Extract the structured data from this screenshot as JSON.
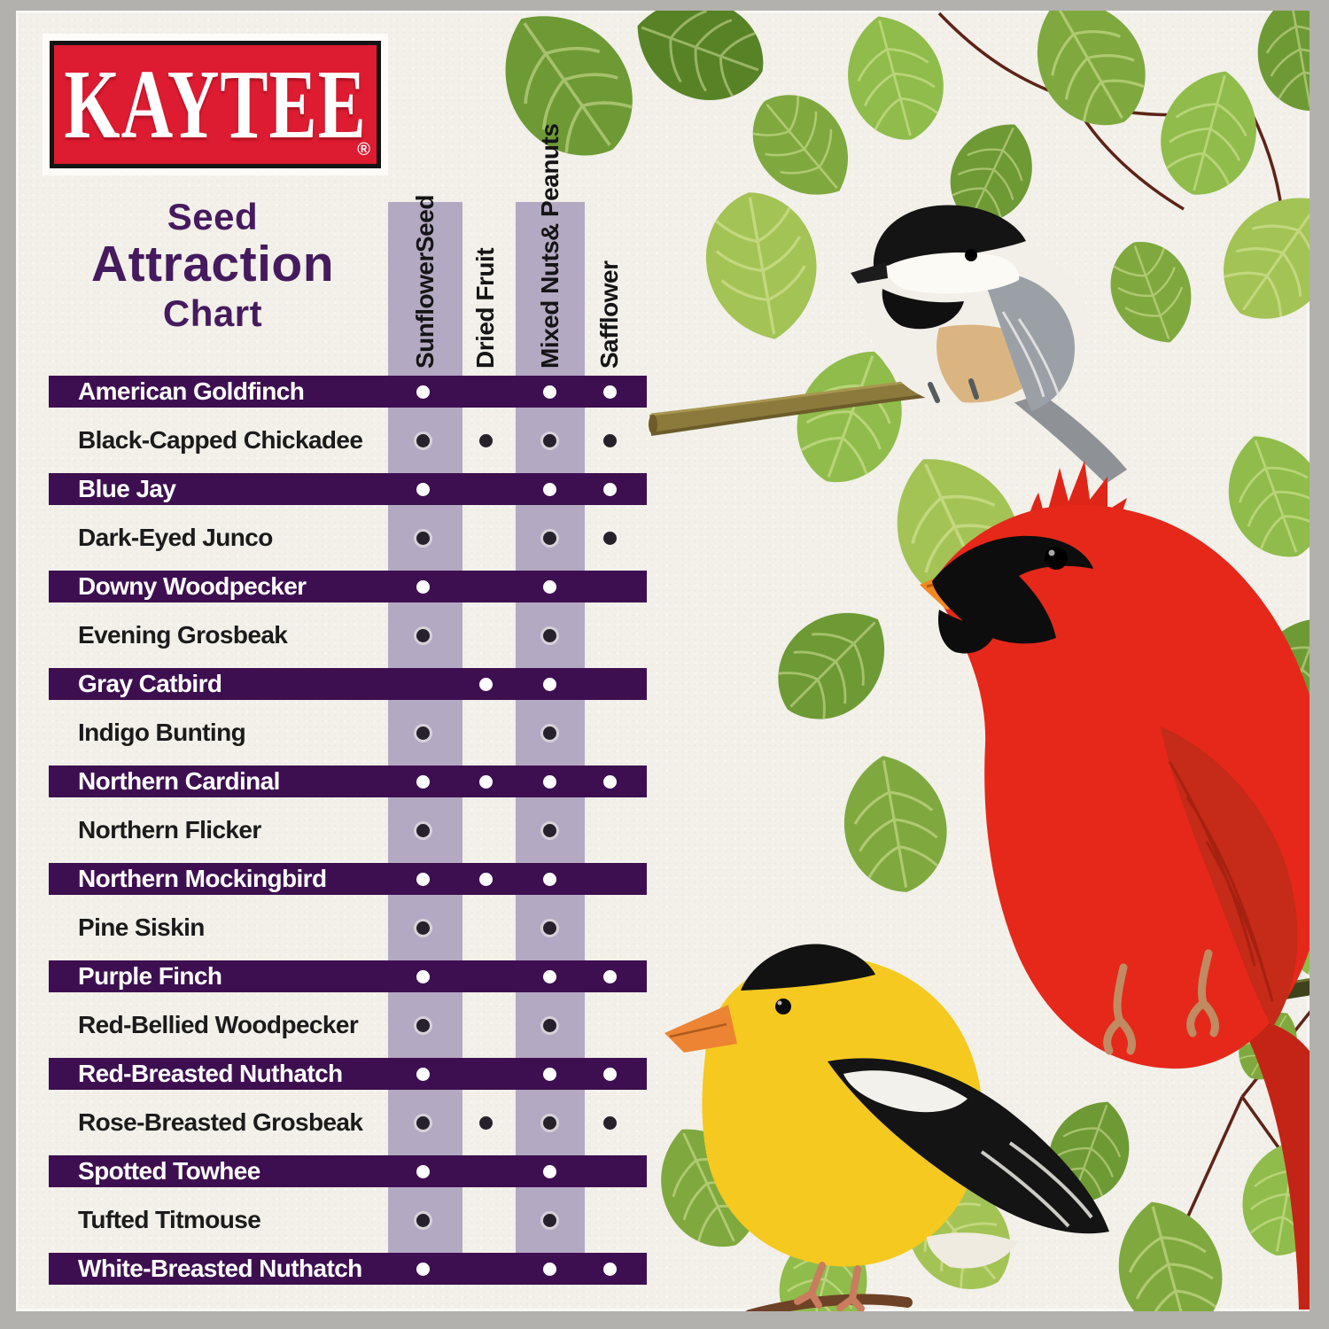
{
  "brand": {
    "logo_text": "KAYTEE",
    "registered_mark": "®",
    "logo_red": "#DD1B31"
  },
  "title": {
    "line1": "Seed",
    "line2": "Attraction",
    "line3": "Chart",
    "color": "#461A5E"
  },
  "columns_display": [
    {
      "line1": "Sunflower",
      "line2": "Seed"
    },
    {
      "line1": "Dried Fruit"
    },
    {
      "line1": "Mixed Nuts",
      "line2": "& Peanuts"
    },
    {
      "line1": "Safflower"
    }
  ],
  "colors": {
    "frame_gray": "#B3B1AD",
    "card_cream": "#F2F0E9",
    "row_dark_purple": "#3D0F50",
    "column_band_lavender": "#B4A9C2",
    "dot_on_dark_row": "#FFFFFF",
    "dot_on_light_row": "#26212A",
    "title_purple": "#461A5E"
  },
  "chart_data": {
    "type": "table",
    "title": "Kaytee Seed Attraction Chart",
    "columns": [
      "Sunflower Seed",
      "Dried Fruit",
      "Mixed Nuts & Peanuts",
      "Safflower"
    ],
    "rows": [
      {
        "bird": "American Goldfinch",
        "dots": [
          1,
          0,
          1,
          1
        ]
      },
      {
        "bird": "Black-Capped Chickadee",
        "dots": [
          1,
          1,
          1,
          1
        ]
      },
      {
        "bird": "Blue Jay",
        "dots": [
          1,
          0,
          1,
          1
        ]
      },
      {
        "bird": "Dark-Eyed Junco",
        "dots": [
          1,
          0,
          1,
          1
        ]
      },
      {
        "bird": "Downy Woodpecker",
        "dots": [
          1,
          0,
          1,
          0
        ]
      },
      {
        "bird": "Evening Grosbeak",
        "dots": [
          1,
          0,
          1,
          0
        ]
      },
      {
        "bird": "Gray Catbird",
        "dots": [
          0,
          1,
          1,
          0
        ]
      },
      {
        "bird": "Indigo Bunting",
        "dots": [
          1,
          0,
          1,
          0
        ]
      },
      {
        "bird": "Northern Cardinal",
        "dots": [
          1,
          1,
          1,
          1
        ]
      },
      {
        "bird": "Northern Flicker",
        "dots": [
          1,
          0,
          1,
          0
        ]
      },
      {
        "bird": "Northern Mockingbird",
        "dots": [
          1,
          1,
          1,
          0
        ]
      },
      {
        "bird": "Pine Siskin",
        "dots": [
          1,
          0,
          1,
          0
        ]
      },
      {
        "bird": "Purple Finch",
        "dots": [
          1,
          0,
          1,
          1
        ]
      },
      {
        "bird": "Red-Bellied Woodpecker",
        "dots": [
          1,
          0,
          1,
          0
        ]
      },
      {
        "bird": "Red-Breasted Nuthatch",
        "dots": [
          1,
          0,
          1,
          1
        ]
      },
      {
        "bird": "Rose-Breasted Grosbeak",
        "dots": [
          1,
          1,
          1,
          1
        ]
      },
      {
        "bird": "Spotted Towhee",
        "dots": [
          1,
          0,
          1,
          0
        ]
      },
      {
        "bird": "Tufted Titmouse",
        "dots": [
          1,
          0,
          1,
          0
        ]
      },
      {
        "bird": "White-Breasted Nuthatch",
        "dots": [
          1,
          0,
          1,
          1
        ]
      }
    ]
  },
  "scene": {
    "illustrations": [
      {
        "name": "green-leaves"
      },
      {
        "name": "tree-branch"
      },
      {
        "name": "black-capped-chickadee"
      },
      {
        "name": "northern-cardinal"
      },
      {
        "name": "american-goldfinch"
      }
    ]
  }
}
